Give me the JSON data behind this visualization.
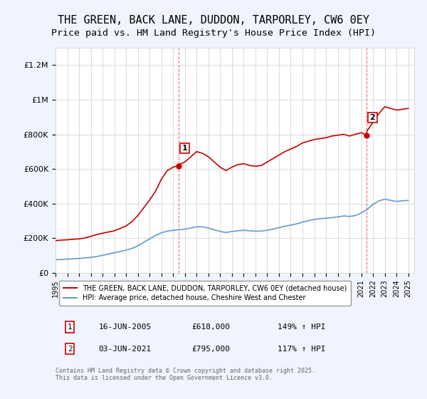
{
  "title": "THE GREEN, BACK LANE, DUDDON, TARPORLEY, CW6 0EY",
  "subtitle": "Price paid vs. HM Land Registry's House Price Index (HPI)",
  "title_fontsize": 11,
  "subtitle_fontsize": 9.5,
  "ylabel_ticks": [
    "£0",
    "£200K",
    "£400K",
    "£600K",
    "£800K",
    "£1M",
    "£1.2M"
  ],
  "ytick_vals": [
    0,
    200000,
    400000,
    600000,
    800000,
    1000000,
    1200000
  ],
  "ylim": [
    0,
    1300000
  ],
  "xlim_start": 1995.0,
  "xlim_end": 2025.5,
  "xtick_years": [
    1995,
    1996,
    1997,
    1998,
    1999,
    2000,
    2001,
    2002,
    2003,
    2004,
    2005,
    2006,
    2007,
    2008,
    2009,
    2010,
    2011,
    2012,
    2013,
    2014,
    2015,
    2016,
    2017,
    2018,
    2019,
    2020,
    2021,
    2022,
    2023,
    2024,
    2025
  ],
  "background_color": "#f0f4ff",
  "plot_bg_color": "#ffffff",
  "red_line_color": "#cc0000",
  "blue_line_color": "#6699cc",
  "vline_color": "#ff6666",
  "marker1_x": 2005.45,
  "marker1_y": 618000,
  "marker2_x": 2021.42,
  "marker2_y": 795000,
  "annotation1_label": "1",
  "annotation2_label": "2",
  "legend_line1": "THE GREEN, BACK LANE, DUDDON, TARPORLEY, CW6 0EY (detached house)",
  "legend_line2": "HPI: Average price, detached house, Cheshire West and Chester",
  "table_row1": [
    "1",
    "16-JUN-2005",
    "£618,000",
    "149% ↑ HPI"
  ],
  "table_row2": [
    "2",
    "03-JUN-2021",
    "£795,000",
    "117% ↑ HPI"
  ],
  "footnote": "Contains HM Land Registry data © Crown copyright and database right 2025.\nThis data is licensed under the Open Government Licence v3.0.",
  "red_hpi_x": [
    1995.0,
    1995.5,
    1996.0,
    1996.5,
    1997.0,
    1997.5,
    1998.0,
    1998.5,
    1999.0,
    1999.5,
    2000.0,
    2000.5,
    2001.0,
    2001.5,
    2002.0,
    2002.5,
    2003.0,
    2003.5,
    2004.0,
    2004.5,
    2005.0,
    2005.45,
    2005.5,
    2006.0,
    2006.5,
    2007.0,
    2007.5,
    2008.0,
    2008.5,
    2009.0,
    2009.5,
    2010.0,
    2010.5,
    2011.0,
    2011.5,
    2012.0,
    2012.5,
    2013.0,
    2013.5,
    2014.0,
    2014.5,
    2015.0,
    2015.5,
    2016.0,
    2016.5,
    2017.0,
    2017.5,
    2018.0,
    2018.5,
    2019.0,
    2019.5,
    2020.0,
    2020.5,
    2021.0,
    2021.42,
    2021.5,
    2022.0,
    2022.5,
    2023.0,
    2023.5,
    2024.0,
    2024.5,
    2025.0
  ],
  "red_hpi_y": [
    185000,
    188000,
    190000,
    193000,
    195000,
    200000,
    210000,
    220000,
    228000,
    235000,
    242000,
    255000,
    270000,
    295000,
    330000,
    375000,
    420000,
    470000,
    540000,
    590000,
    610000,
    618000,
    625000,
    640000,
    670000,
    700000,
    690000,
    670000,
    640000,
    610000,
    590000,
    610000,
    625000,
    630000,
    620000,
    615000,
    620000,
    640000,
    660000,
    680000,
    700000,
    715000,
    730000,
    750000,
    760000,
    770000,
    775000,
    780000,
    790000,
    795000,
    800000,
    790000,
    800000,
    810000,
    795000,
    820000,
    870000,
    920000,
    960000,
    950000,
    940000,
    945000,
    950000
  ],
  "blue_hpi_x": [
    1995.0,
    1995.5,
    1996.0,
    1996.5,
    1997.0,
    1997.5,
    1998.0,
    1998.5,
    1999.0,
    1999.5,
    2000.0,
    2000.5,
    2001.0,
    2001.5,
    2002.0,
    2002.5,
    2003.0,
    2003.5,
    2004.0,
    2004.5,
    2005.0,
    2005.5,
    2006.0,
    2006.5,
    2007.0,
    2007.5,
    2008.0,
    2008.5,
    2009.0,
    2009.5,
    2010.0,
    2010.5,
    2011.0,
    2011.5,
    2012.0,
    2012.5,
    2013.0,
    2013.5,
    2014.0,
    2014.5,
    2015.0,
    2015.5,
    2016.0,
    2016.5,
    2017.0,
    2017.5,
    2018.0,
    2018.5,
    2019.0,
    2019.5,
    2020.0,
    2020.5,
    2021.0,
    2021.5,
    2022.0,
    2022.5,
    2023.0,
    2023.5,
    2024.0,
    2024.5,
    2025.0
  ],
  "blue_hpi_y": [
    75000,
    76000,
    78000,
    80000,
    82000,
    85000,
    88000,
    93000,
    100000,
    108000,
    115000,
    122000,
    130000,
    140000,
    155000,
    175000,
    195000,
    215000,
    230000,
    240000,
    245000,
    248000,
    252000,
    258000,
    265000,
    265000,
    258000,
    248000,
    238000,
    232000,
    238000,
    242000,
    245000,
    242000,
    240000,
    240000,
    245000,
    252000,
    260000,
    268000,
    275000,
    282000,
    292000,
    300000,
    308000,
    312000,
    315000,
    318000,
    322000,
    328000,
    325000,
    330000,
    345000,
    365000,
    395000,
    415000,
    425000,
    418000,
    412000,
    415000,
    418000
  ]
}
